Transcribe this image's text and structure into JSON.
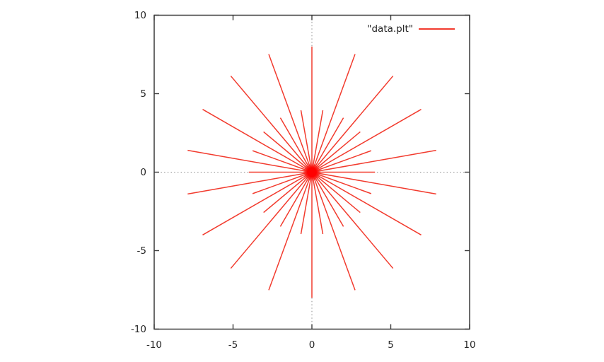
{
  "figure": {
    "background": "#ffffff",
    "border_color": "#3a3a3a",
    "tick_color": "#3a3a3a",
    "text_color": "#262626",
    "zeroaxis_color": "#8c8c8c",
    "series_color": "#f23b2e",
    "series_core_color": "#ff0000"
  },
  "legend": {
    "label": "\"data.plt\"",
    "position": "top-right"
  },
  "chart_data": {
    "type": "line",
    "subtype": "polar-impulses",
    "title": "",
    "xlabel": "",
    "ylabel": "",
    "xlim": [
      -10,
      10
    ],
    "ylim": [
      -10,
      10
    ],
    "xticks": [
      -10,
      -5,
      0,
      5,
      10
    ],
    "yticks": [
      -10,
      -5,
      0,
      5,
      10
    ],
    "xtick_labels": [
      "-10",
      "-5",
      "0",
      "5",
      "10"
    ],
    "ytick_labels": [
      "-10",
      "-5",
      "0",
      "5",
      "10"
    ],
    "grid": false,
    "zeroaxis_dotted": true,
    "legend_position": "top-right",
    "series": [
      {
        "name": "\"data.plt\"",
        "style": "impulses-from-origin",
        "points": [
          {
            "theta_deg": 0,
            "r": 4
          },
          {
            "theta_deg": 10,
            "r": 8
          },
          {
            "theta_deg": 20,
            "r": 4
          },
          {
            "theta_deg": 30,
            "r": 8
          },
          {
            "theta_deg": 40,
            "r": 4
          },
          {
            "theta_deg": 50,
            "r": 8
          },
          {
            "theta_deg": 60,
            "r": 4
          },
          {
            "theta_deg": 70,
            "r": 8
          },
          {
            "theta_deg": 80,
            "r": 4
          },
          {
            "theta_deg": 90,
            "r": 8
          },
          {
            "theta_deg": 100,
            "r": 4
          },
          {
            "theta_deg": 110,
            "r": 8
          },
          {
            "theta_deg": 120,
            "r": 4
          },
          {
            "theta_deg": 130,
            "r": 8
          },
          {
            "theta_deg": 140,
            "r": 4
          },
          {
            "theta_deg": 150,
            "r": 8
          },
          {
            "theta_deg": 160,
            "r": 4
          },
          {
            "theta_deg": 170,
            "r": 8
          },
          {
            "theta_deg": 180,
            "r": 4
          },
          {
            "theta_deg": 190,
            "r": 8
          },
          {
            "theta_deg": 200,
            "r": 4
          },
          {
            "theta_deg": 210,
            "r": 8
          },
          {
            "theta_deg": 220,
            "r": 4
          },
          {
            "theta_deg": 230,
            "r": 8
          },
          {
            "theta_deg": 240,
            "r": 4
          },
          {
            "theta_deg": 250,
            "r": 8
          },
          {
            "theta_deg": 260,
            "r": 4
          },
          {
            "theta_deg": 270,
            "r": 8
          },
          {
            "theta_deg": 280,
            "r": 4
          },
          {
            "theta_deg": 290,
            "r": 8
          },
          {
            "theta_deg": 300,
            "r": 4
          },
          {
            "theta_deg": 310,
            "r": 8
          },
          {
            "theta_deg": 320,
            "r": 4
          },
          {
            "theta_deg": 330,
            "r": 8
          },
          {
            "theta_deg": 340,
            "r": 4
          },
          {
            "theta_deg": 350,
            "r": 8
          }
        ]
      }
    ]
  }
}
